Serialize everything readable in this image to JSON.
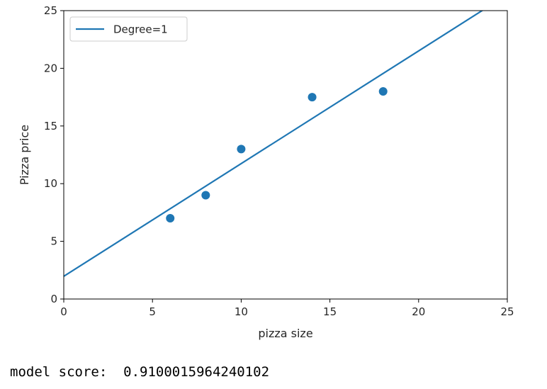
{
  "chart_data": {
    "type": "scatter",
    "xlabel": "pizza size",
    "ylabel": "Pizza price",
    "xlim": [
      0,
      25
    ],
    "ylim": [
      0,
      25
    ],
    "xticks": [
      0,
      5,
      10,
      15,
      20,
      25
    ],
    "yticks": [
      0,
      5,
      10,
      15,
      20,
      25
    ],
    "grid": false,
    "legend": {
      "position": "top-left",
      "entries": [
        "Degree=1"
      ]
    },
    "series": [
      {
        "type": "scatter",
        "color": "#1f77b4",
        "points": [
          {
            "x": 6,
            "y": 7
          },
          {
            "x": 8,
            "y": 9
          },
          {
            "x": 10,
            "y": 13
          },
          {
            "x": 14,
            "y": 17.5
          },
          {
            "x": 18,
            "y": 18
          }
        ]
      },
      {
        "type": "line",
        "name": "Degree=1",
        "color": "#1f77b4",
        "points": [
          {
            "x": 0,
            "y": 1.97
          },
          {
            "x": 25,
            "y": 26.39
          }
        ]
      }
    ]
  },
  "output": {
    "text": "model score:  0.9100015964240102"
  }
}
